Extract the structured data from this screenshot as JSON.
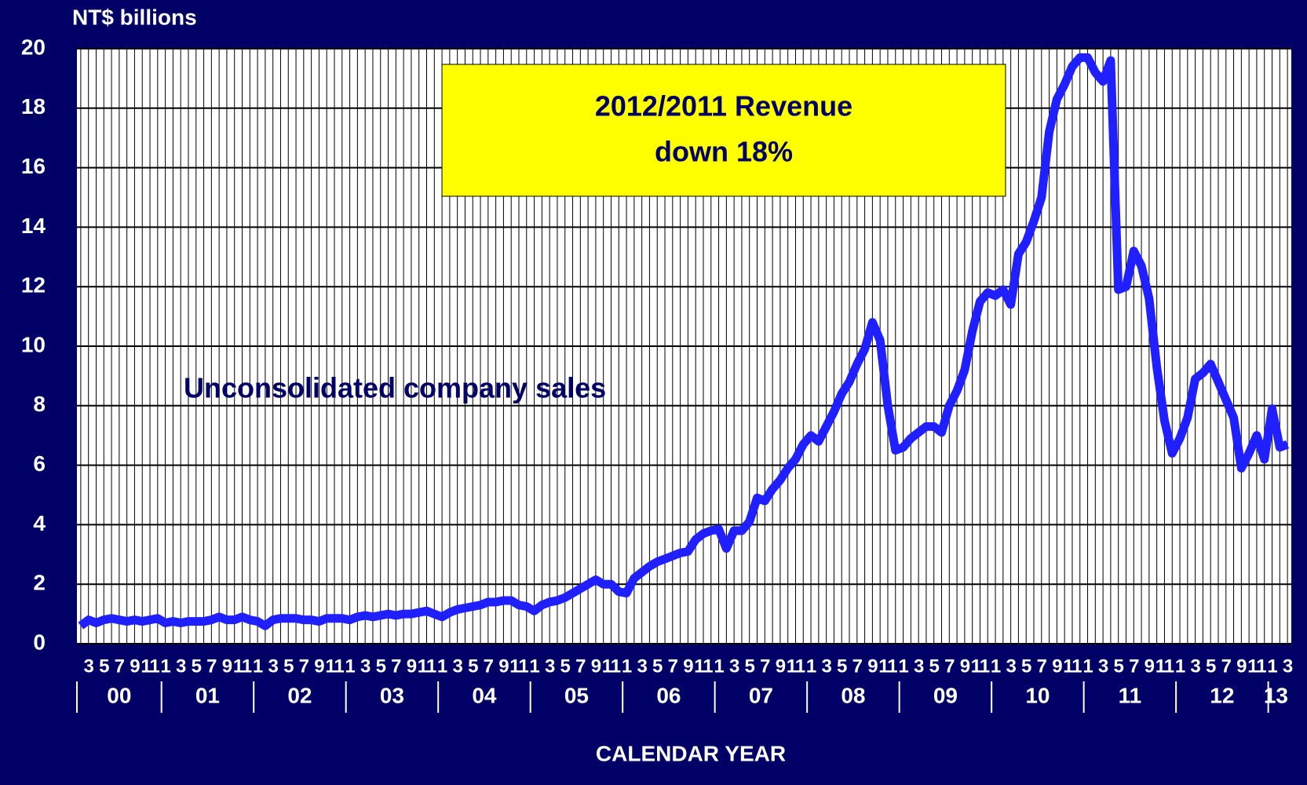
{
  "chart_data": {
    "type": "line",
    "y_axis_label": "NT$ billions",
    "x_axis_label": "CALENDAR YEAR",
    "annotation": [
      "2012/2011 Revenue",
      "down 18%"
    ],
    "series_label": "Unconsolidated company sales",
    "categories": [
      null,
      "3",
      null,
      "5",
      null,
      "7",
      null,
      "9",
      null,
      "11",
      null,
      "1",
      null,
      "3",
      null,
      "5",
      null,
      "7",
      null,
      "9",
      null,
      "11",
      null,
      "1",
      null,
      "3",
      null,
      "5",
      null,
      "7",
      null,
      "9",
      null,
      "11",
      null,
      "1",
      null,
      "3",
      null,
      "5",
      null,
      "7",
      null,
      "9",
      null,
      "11",
      null,
      "1",
      null,
      "3",
      null,
      "5",
      null,
      "7",
      null,
      "9",
      null,
      "11",
      null,
      "1",
      null,
      "3",
      null,
      "5",
      null,
      "7",
      null,
      "9",
      null,
      "11",
      null,
      "1",
      null,
      "3",
      null,
      "5",
      null,
      "7",
      null,
      "9",
      null,
      "11",
      null,
      "1",
      null,
      "3",
      null,
      "5",
      null,
      "7",
      null,
      "9",
      null,
      "11",
      null,
      "1",
      null,
      "3",
      null,
      "5",
      null,
      "7",
      null,
      "9",
      null,
      "11",
      null,
      "1",
      null,
      "3",
      null,
      "5",
      null,
      "7",
      null,
      "9",
      null,
      "11",
      null,
      "1",
      null,
      "3",
      null,
      "5",
      null,
      "7",
      null,
      "9",
      null,
      "11",
      null,
      "1",
      null,
      "3",
      null,
      "5",
      null,
      "7",
      null,
      "9",
      null,
      "11",
      null,
      "1",
      null,
      "3",
      null,
      "5",
      null,
      "7",
      null,
      "9",
      null,
      "11",
      null,
      "1",
      null,
      "3"
    ],
    "year_labels": [
      "00",
      "01",
      "02",
      "03",
      "04",
      "05",
      "06",
      "07",
      "08",
      "09",
      "10",
      "11",
      "12",
      "13"
    ],
    "series": [
      {
        "name": "Unconsolidated company sales",
        "color": "#1f1fff",
        "values": [
          0.6,
          0.8,
          0.7,
          0.8,
          0.85,
          0.8,
          0.75,
          0.8,
          0.75,
          0.8,
          0.85,
          0.7,
          0.75,
          0.7,
          0.75,
          0.75,
          0.75,
          0.8,
          0.9,
          0.8,
          0.8,
          0.9,
          0.8,
          0.75,
          0.6,
          0.8,
          0.85,
          0.85,
          0.85,
          0.8,
          0.8,
          0.75,
          0.85,
          0.85,
          0.85,
          0.8,
          0.9,
          0.95,
          0.9,
          0.95,
          1.0,
          0.95,
          1.0,
          1.0,
          1.05,
          1.1,
          1.0,
          0.9,
          1.05,
          1.15,
          1.2,
          1.25,
          1.3,
          1.4,
          1.4,
          1.45,
          1.45,
          1.3,
          1.25,
          1.1,
          1.3,
          1.4,
          1.45,
          1.55,
          1.7,
          1.85,
          2.0,
          2.15,
          2.0,
          2.0,
          1.75,
          1.7,
          2.2,
          2.4,
          2.6,
          2.75,
          2.85,
          2.95,
          3.05,
          3.1,
          3.5,
          3.7,
          3.8,
          3.85,
          3.2,
          3.8,
          3.8,
          4.1,
          4.9,
          4.8,
          5.2,
          5.5,
          5.9,
          6.2,
          6.7,
          7.0,
          6.8,
          7.3,
          7.8,
          8.4,
          8.8,
          9.4,
          9.9,
          10.8,
          10.2,
          8.0,
          6.5,
          6.6,
          6.9,
          7.1,
          7.3,
          7.3,
          7.1,
          8.0,
          8.5,
          9.2,
          10.5,
          11.5,
          11.8,
          11.7,
          11.9,
          11.4,
          13.1,
          13.5,
          14.2,
          15.0,
          17.2,
          18.3,
          18.8,
          19.4,
          19.7,
          19.7,
          19.2,
          18.9,
          19.6,
          11.9,
          12.0,
          13.2,
          12.7,
          11.6,
          9.3,
          7.5,
          6.4,
          6.9,
          7.6,
          8.9,
          9.1,
          9.4,
          8.8,
          8.2,
          7.6,
          5.9,
          6.4,
          7.0,
          6.2,
          7.9,
          6.6,
          6.7
        ]
      }
    ],
    "ylim": [
      0,
      20
    ],
    "yticks": [
      0,
      2,
      4,
      6,
      8,
      10,
      12,
      14,
      16,
      18,
      20
    ],
    "grid": true
  }
}
